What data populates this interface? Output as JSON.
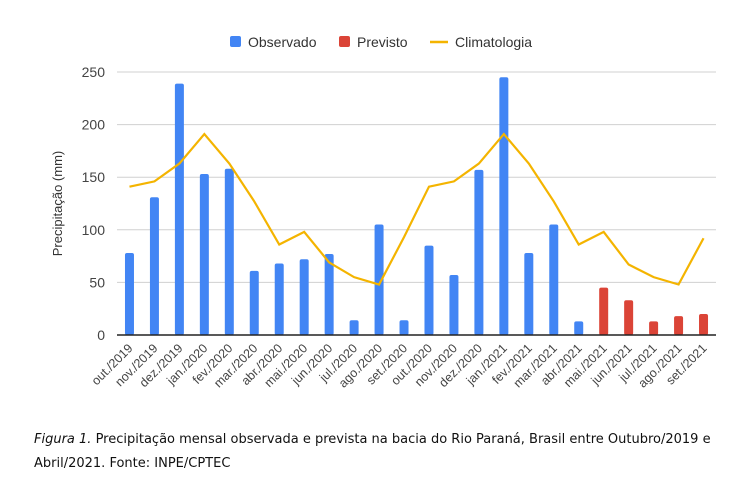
{
  "chart_data": {
    "type": "bar+line",
    "title": "",
    "ylabel": "Precipitação (mm)",
    "xlabel": "",
    "ylim": [
      0,
      250
    ],
    "yticks": [
      0,
      50,
      100,
      150,
      200,
      250
    ],
    "grid": true,
    "legend_placement": "top",
    "categories": [
      "out./2019",
      "nov./2019",
      "dez./2019",
      "jan./2020",
      "fev./2020",
      "mar./2020",
      "abr./2020",
      "mai./2020",
      "jun./2020",
      "jul./2020",
      "ago./2020",
      "set./2020",
      "out./2020",
      "nov./2020",
      "dez./2020",
      "jan./2021",
      "fev./2021",
      "mar./2021",
      "abr./2021",
      "mai./2021",
      "jun./2021",
      "jul./2021",
      "ago./2021",
      "set./2021"
    ],
    "series": [
      {
        "name": "Observado",
        "type": "bar",
        "color": "#4285f4",
        "values": [
          78,
          131,
          239,
          153,
          158,
          61,
          68,
          72,
          77,
          14,
          105,
          14,
          85,
          57,
          157,
          245,
          78,
          105,
          13,
          null,
          null,
          null,
          null,
          null
        ]
      },
      {
        "name": "Previsto",
        "type": "bar",
        "color": "#db4437",
        "values": [
          null,
          null,
          null,
          null,
          null,
          null,
          null,
          null,
          null,
          null,
          null,
          null,
          null,
          null,
          null,
          null,
          null,
          null,
          null,
          45,
          33,
          13,
          18,
          20
        ]
      },
      {
        "name": "Climatologia",
        "type": "line",
        "color": "#f4b400",
        "values": [
          141,
          146,
          163,
          191,
          163,
          127,
          86,
          98,
          69,
          55,
          48,
          93,
          141,
          146,
          163,
          191,
          163,
          127,
          86,
          98,
          67,
          55,
          48,
          92
        ]
      }
    ]
  },
  "caption": {
    "label": "Figura 1.",
    "text": " Precipitação mensal observada e prevista na bacia do Rio Paraná, Brasil entre Outubro/2019 e Abril/2021. Fonte: INPE/CPTEC"
  }
}
